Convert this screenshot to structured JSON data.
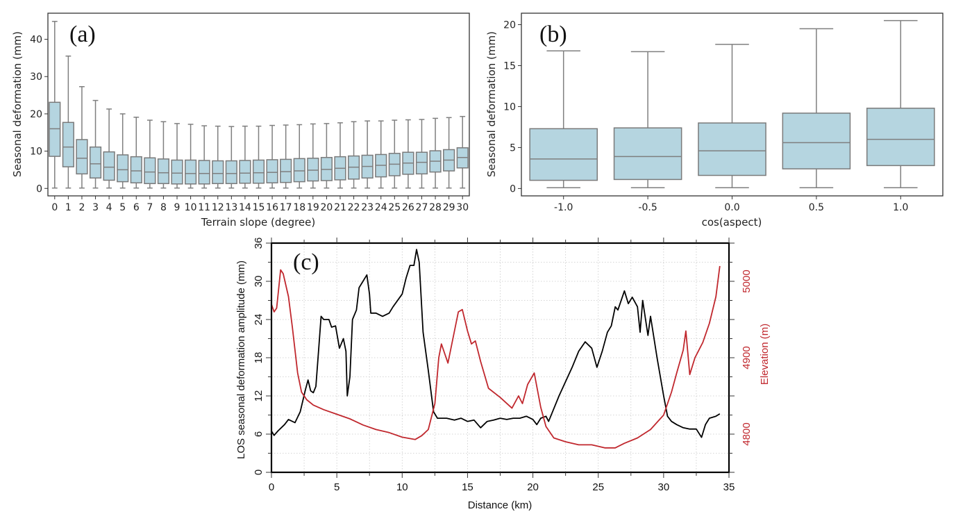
{
  "chart_data": [
    {
      "id": "a",
      "type": "box",
      "panel_label": "(a)",
      "xlabel": "Terrain slope (degree)",
      "ylabel": "Seasonal deformation (mm)",
      "ylim": [
        -2,
        47
      ],
      "yticks": [
        0,
        10,
        20,
        30,
        40
      ],
      "categories": [
        "0",
        "1",
        "2",
        "3",
        "4",
        "5",
        "6",
        "7",
        "8",
        "9",
        "10",
        "11",
        "12",
        "13",
        "14",
        "15",
        "16",
        "17",
        "18",
        "19",
        "20",
        "21",
        "22",
        "23",
        "24",
        "25",
        "26",
        "27",
        "28",
        "29",
        "30"
      ],
      "boxes": [
        {
          "low": 0.1,
          "q1": 8.6,
          "median": 16.0,
          "q3": 23.1,
          "high": 44.8
        },
        {
          "low": 0.1,
          "q1": 5.8,
          "median": 11.1,
          "q3": 17.7,
          "high": 35.5
        },
        {
          "low": 0.1,
          "q1": 3.9,
          "median": 8.1,
          "q3": 13.1,
          "high": 27.3
        },
        {
          "low": 0.1,
          "q1": 2.8,
          "median": 6.6,
          "q3": 11.1,
          "high": 23.6
        },
        {
          "low": 0.1,
          "q1": 2.2,
          "median": 5.7,
          "q3": 9.8,
          "high": 21.3
        },
        {
          "low": 0.1,
          "q1": 1.8,
          "median": 5.0,
          "q3": 9.0,
          "high": 20.0
        },
        {
          "low": 0.1,
          "q1": 1.5,
          "median": 4.7,
          "q3": 8.5,
          "high": 19.1
        },
        {
          "low": 0.1,
          "q1": 1.3,
          "median": 4.4,
          "q3": 8.2,
          "high": 18.3
        },
        {
          "low": 0.1,
          "q1": 1.3,
          "median": 4.2,
          "q3": 7.9,
          "high": 17.9
        },
        {
          "low": 0.1,
          "q1": 1.2,
          "median": 4.1,
          "q3": 7.6,
          "high": 17.4
        },
        {
          "low": 0.1,
          "q1": 1.2,
          "median": 4.0,
          "q3": 7.6,
          "high": 17.2
        },
        {
          "low": 0.1,
          "q1": 1.2,
          "median": 4.0,
          "q3": 7.5,
          "high": 16.8
        },
        {
          "low": 0.1,
          "q1": 1.3,
          "median": 4.0,
          "q3": 7.4,
          "high": 16.7
        },
        {
          "low": 0.1,
          "q1": 1.3,
          "median": 4.0,
          "q3": 7.4,
          "high": 16.6
        },
        {
          "low": 0.1,
          "q1": 1.4,
          "median": 4.1,
          "q3": 7.5,
          "high": 16.7
        },
        {
          "low": 0.1,
          "q1": 1.4,
          "median": 4.2,
          "q3": 7.6,
          "high": 16.7
        },
        {
          "low": 0.1,
          "q1": 1.5,
          "median": 4.3,
          "q3": 7.7,
          "high": 16.9
        },
        {
          "low": 0.1,
          "q1": 1.6,
          "median": 4.5,
          "q3": 7.8,
          "high": 17.0
        },
        {
          "low": 0.1,
          "q1": 1.8,
          "median": 4.7,
          "q3": 8.0,
          "high": 17.1
        },
        {
          "low": 0.1,
          "q1": 2.0,
          "median": 4.9,
          "q3": 8.1,
          "high": 17.3
        },
        {
          "low": 0.1,
          "q1": 2.1,
          "median": 5.1,
          "q3": 8.3,
          "high": 17.4
        },
        {
          "low": 0.1,
          "q1": 2.3,
          "median": 5.4,
          "q3": 8.5,
          "high": 17.6
        },
        {
          "low": 0.1,
          "q1": 2.5,
          "median": 5.7,
          "q3": 8.7,
          "high": 17.9
        },
        {
          "low": 0.1,
          "q1": 2.8,
          "median": 5.9,
          "q3": 8.9,
          "high": 18.1
        },
        {
          "low": 0.1,
          "q1": 3.1,
          "median": 6.2,
          "q3": 9.1,
          "high": 18.1
        },
        {
          "low": 0.1,
          "q1": 3.4,
          "median": 6.5,
          "q3": 9.4,
          "high": 18.3
        },
        {
          "low": 0.1,
          "q1": 3.8,
          "median": 6.8,
          "q3": 9.7,
          "high": 18.4
        },
        {
          "low": 0.1,
          "q1": 3.9,
          "median": 7.0,
          "q3": 9.7,
          "high": 18.5
        },
        {
          "low": 0.1,
          "q1": 4.4,
          "median": 7.3,
          "q3": 10.1,
          "high": 18.8
        },
        {
          "low": 0.1,
          "q1": 4.7,
          "median": 7.6,
          "q3": 10.4,
          "high": 19.0
        },
        {
          "low": 0.1,
          "q1": 5.5,
          "median": 8.3,
          "q3": 10.9,
          "high": 19.3
        }
      ]
    },
    {
      "id": "b",
      "type": "box",
      "panel_label": "(b)",
      "xlabel": "cos(aspect)",
      "ylabel": "Seasonal deformation (mm)",
      "ylim": [
        -0.9,
        21.4
      ],
      "yticks": [
        0,
        5,
        10,
        15,
        20
      ],
      "categories": [
        "-1.0",
        "-0.5",
        "0.0",
        "0.5",
        "1.0"
      ],
      "boxes": [
        {
          "low": 0.1,
          "q1": 1.0,
          "median": 3.6,
          "q3": 7.3,
          "high": 16.8
        },
        {
          "low": 0.1,
          "q1": 1.1,
          "median": 3.9,
          "q3": 7.4,
          "high": 16.7
        },
        {
          "low": 0.1,
          "q1": 1.6,
          "median": 4.6,
          "q3": 8.0,
          "high": 17.6
        },
        {
          "low": 0.1,
          "q1": 2.4,
          "median": 5.6,
          "q3": 9.2,
          "high": 19.5
        },
        {
          "low": 0.1,
          "q1": 2.8,
          "median": 6.0,
          "q3": 9.8,
          "high": 20.5
        }
      ]
    },
    {
      "id": "c",
      "type": "line",
      "panel_label": "(c)",
      "xlabel": "Distance (km)",
      "ylabel": "LOS seasonal deformation amplitude (mm)",
      "ylabel_right": "Elevation (m)",
      "xlim": [
        0,
        35
      ],
      "ylim": [
        0,
        36
      ],
      "ylim_right": [
        4750,
        5050
      ],
      "xticks": [
        0,
        5,
        10,
        15,
        20,
        25,
        30,
        35
      ],
      "yticks": [
        0,
        6,
        12,
        18,
        24,
        30,
        36
      ],
      "yticks_right": [
        4800,
        4900,
        5000
      ],
      "grid": true,
      "series": [
        {
          "name": "LOS seasonal deformation amplitude",
          "axis": "left",
          "color": "#000000",
          "x": [
            0,
            0.2,
            0.5,
            1,
            1.3,
            1.8,
            2.2,
            2.6,
            2.8,
            3.0,
            3.2,
            3.4,
            3.6,
            3.8,
            4.0,
            4.4,
            4.6,
            4.9,
            5.2,
            5.5,
            5.7,
            5.8,
            6.0,
            6.2,
            6.5,
            6.7,
            7.0,
            7.3,
            7.5,
            7.6,
            8,
            8.5,
            9,
            9.3,
            10,
            10.3,
            10.6,
            10.9,
            11.1,
            11.3,
            11.6,
            12.0,
            12.4,
            12.7,
            13.4,
            14,
            14.5,
            15,
            15.5,
            16,
            16.5,
            17,
            17.5,
            18,
            18.5,
            19,
            19.5,
            20,
            20.3,
            20.6,
            21,
            21.2,
            22,
            23,
            23.5,
            24,
            24.5,
            24.9,
            25.3,
            25.7,
            26,
            26.3,
            26.5,
            27,
            27.3,
            27.6,
            28,
            28.2,
            28.4,
            28.8,
            29,
            29.5,
            30,
            30.3,
            30.6,
            31,
            31.5,
            32,
            32.5,
            32.9,
            33.2,
            33.5,
            34,
            34.3
          ],
          "y": [
            6.5,
            5.8,
            6.5,
            7.5,
            8.3,
            7.8,
            9.5,
            13,
            14.5,
            12.8,
            12.5,
            13.5,
            19,
            24.5,
            24,
            24,
            22.8,
            23,
            19.5,
            21,
            19,
            12,
            15,
            24,
            25.5,
            29,
            30,
            31,
            28,
            25,
            25,
            24.5,
            25,
            26,
            28,
            30.5,
            32.5,
            32.5,
            35,
            33,
            22,
            16,
            9.5,
            8.5,
            8.5,
            8.2,
            8.5,
            8.0,
            8.2,
            7.0,
            8.0,
            8.2,
            8.5,
            8.3,
            8.5,
            8.5,
            8.8,
            8.3,
            7.5,
            8.5,
            8.8,
            8,
            12,
            16.5,
            19,
            20.5,
            19.5,
            16.5,
            19,
            22,
            23,
            26,
            25.5,
            28.5,
            26.5,
            27.5,
            26,
            22,
            27,
            21.5,
            24.5,
            18,
            12,
            8.8,
            8.0,
            7.5,
            7.0,
            6.8,
            6.8,
            5.5,
            7.5,
            8.5,
            8.8,
            9.2
          ]
        },
        {
          "name": "Elevation",
          "axis": "right",
          "color": "#c0272d",
          "x": [
            0,
            0.2,
            0.4,
            0.7,
            0.9,
            1.3,
            1.6,
            2.0,
            2.3,
            2.7,
            3.2,
            4,
            5,
            6,
            7,
            8,
            9,
            10,
            11,
            11.5,
            12,
            12.5,
            12.8,
            13,
            13.5,
            14,
            14.3,
            14.6,
            15,
            15.3,
            15.6,
            16,
            16.6,
            17.5,
            18.4,
            18.9,
            19.2,
            19.6,
            20.1,
            20.6,
            21,
            21.6,
            22.5,
            23.5,
            24.5,
            25.5,
            26.3,
            27,
            28,
            29,
            30,
            30.6,
            31,
            31.5,
            31.7,
            32,
            32.4,
            33,
            33.5,
            34,
            34.3
          ],
          "y": [
            4970,
            4960,
            4965,
            5015,
            5010,
            4980,
            4940,
            4880,
            4855,
            4845,
            4838,
            4832,
            4826,
            4820,
            4812,
            4806,
            4802,
            4796,
            4793,
            4798,
            4806,
            4840,
            4900,
            4918,
            4893,
            4935,
            4960,
            4963,
            4935,
            4918,
            4922,
            4895,
            4860,
            4848,
            4834,
            4850,
            4840,
            4865,
            4880,
            4835,
            4810,
            4795,
            4790,
            4786,
            4786,
            4782,
            4782,
            4788,
            4795,
            4806,
            4825,
            4855,
            4880,
            4910,
            4935,
            4878,
            4900,
            4920,
            4945,
            4980,
            5020
          ]
        }
      ]
    }
  ]
}
